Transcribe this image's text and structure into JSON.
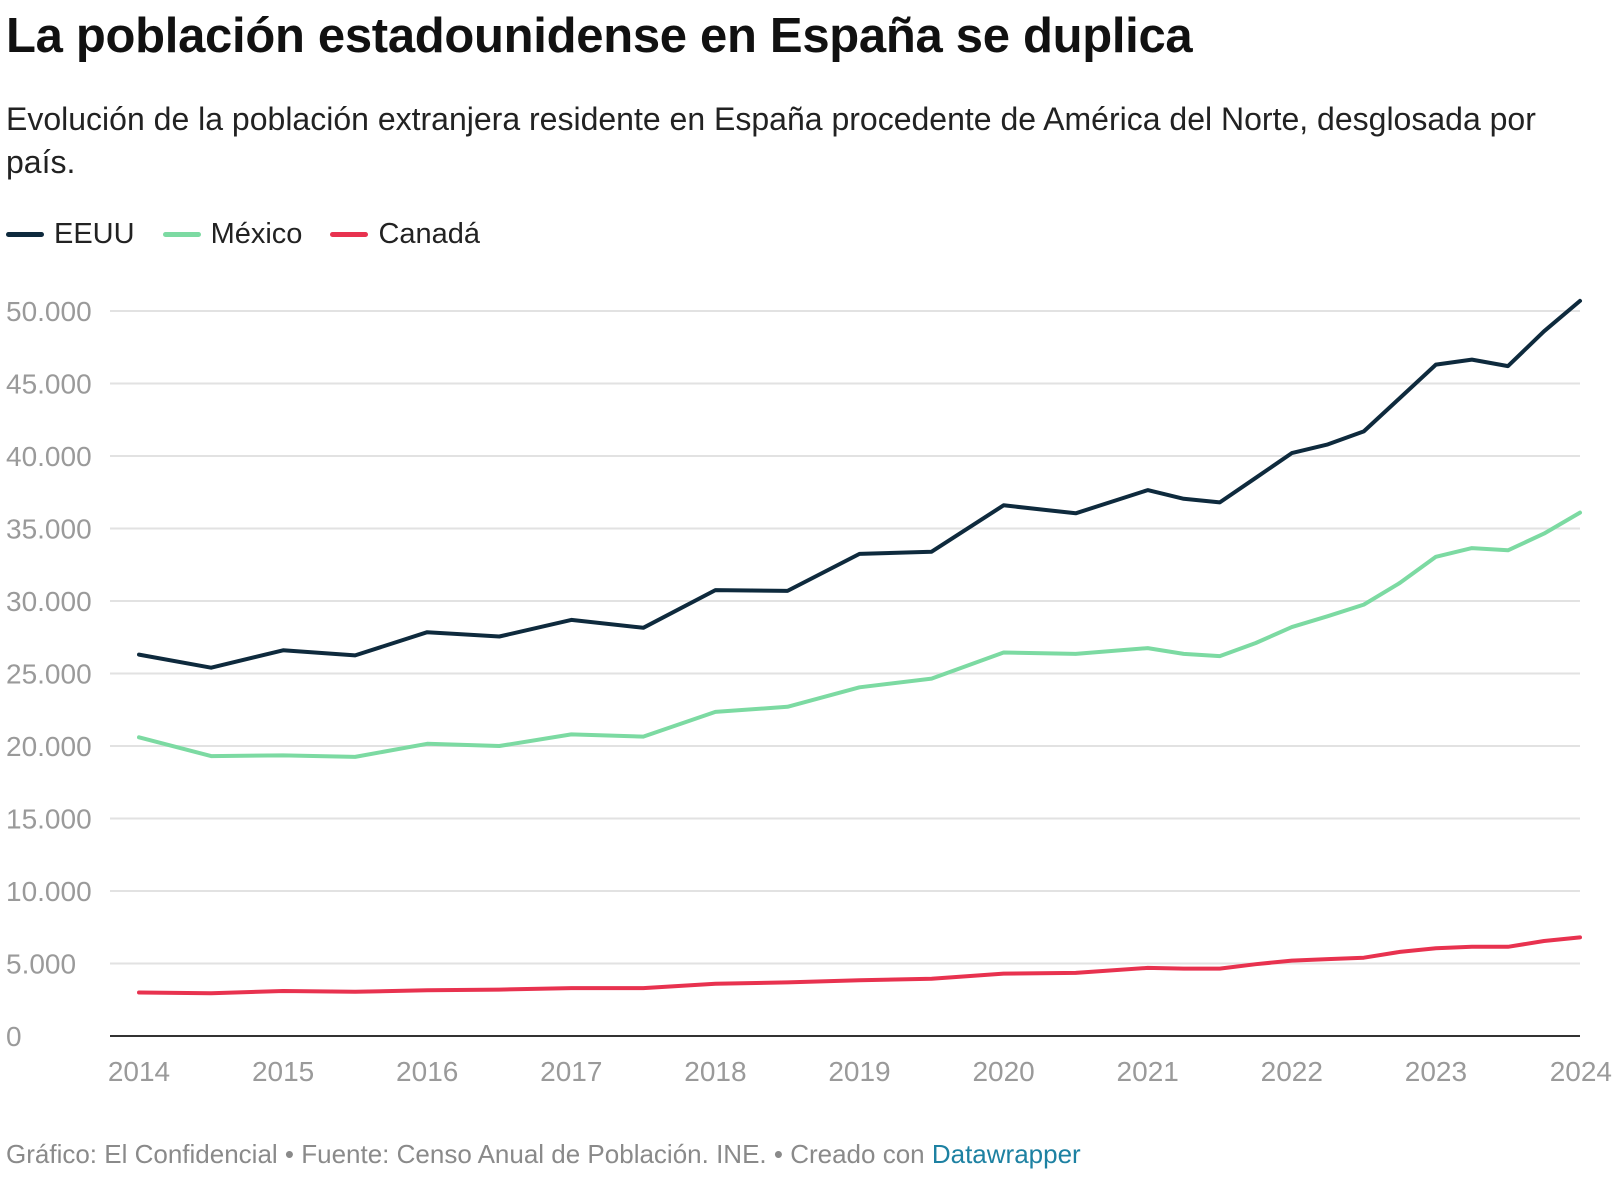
{
  "title": "La población estadounidense en España se duplica",
  "subtitle": "Evolución de la población extranjera residente en España procedente de América del Norte, desglosada por país.",
  "legend": [
    {
      "label": "EEUU",
      "color": "#0e2a3d"
    },
    {
      "label": "México",
      "color": "#7cdaa2"
    },
    {
      "label": "Canadá",
      "color": "#e8324f"
    }
  ],
  "footer": {
    "text": "Gráfico: El Confidencial • Fuente: Censo Anual de Población. INE. • Creado con ",
    "brand": "Datawrapper"
  },
  "chart_data": {
    "type": "line",
    "title": "La población estadounidense en España se duplica",
    "xlabel": "",
    "ylabel": "",
    "ylim": [
      0,
      50000
    ],
    "xlim": [
      2014,
      2024
    ],
    "yticks": [
      0,
      5000,
      10000,
      15000,
      20000,
      25000,
      30000,
      35000,
      40000,
      45000,
      50000
    ],
    "ytick_labels": [
      "0",
      "5.000",
      "10.000",
      "15.000",
      "20.000",
      "25.000",
      "30.000",
      "35.000",
      "40.000",
      "45.000",
      "50.000"
    ],
    "xticks": [
      "2014",
      "2015",
      "2016",
      "2017",
      "2018",
      "2019",
      "2020",
      "2021",
      "2022",
      "2023",
      "2024"
    ],
    "x": [
      2014.0,
      2014.5,
      2015.0,
      2015.5,
      2016.0,
      2016.5,
      2017.0,
      2017.5,
      2018.0,
      2018.5,
      2019.0,
      2019.5,
      2020.0,
      2020.5,
      2021.0,
      2021.25,
      2021.5,
      2021.75,
      2022.0,
      2022.25,
      2022.5,
      2022.75,
      2023.0,
      2023.25,
      2023.5,
      2023.75,
      2024.0
    ],
    "series": [
      {
        "name": "EEUU",
        "color": "#0e2a3d",
        "values": [
          26300,
          25400,
          26600,
          26250,
          27850,
          27550,
          28700,
          28150,
          30750,
          30700,
          33250,
          33400,
          36600,
          36050,
          37650,
          37050,
          36800,
          38500,
          40200,
          40800,
          41700,
          44000,
          46300,
          46650,
          46200,
          48600,
          50700
        ]
      },
      {
        "name": "México",
        "color": "#7cdaa2",
        "values": [
          20600,
          19300,
          19350,
          19250,
          20150,
          20000,
          20800,
          20650,
          22350,
          22700,
          24050,
          24650,
          26450,
          26350,
          26750,
          26350,
          26200,
          27100,
          28200,
          28950,
          29750,
          31250,
          33050,
          33650,
          33500,
          34650,
          36100
        ]
      },
      {
        "name": "Canadá",
        "color": "#e8324f",
        "values": [
          3000,
          2950,
          3100,
          3050,
          3150,
          3200,
          3300,
          3300,
          3600,
          3700,
          3850,
          3950,
          4300,
          4350,
          4700,
          4650,
          4650,
          4950,
          5200,
          5300,
          5400,
          5800,
          6050,
          6150,
          6150,
          6550,
          6800
        ]
      }
    ]
  }
}
